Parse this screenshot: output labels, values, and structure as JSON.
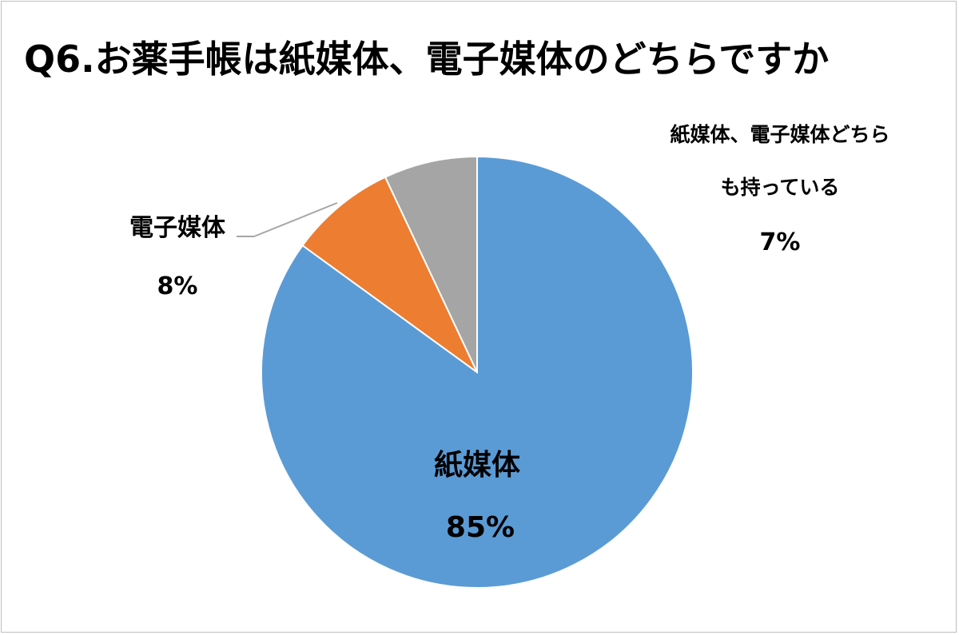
{
  "chart_data": {
    "type": "pie",
    "title": "Q6.お薬手帳は紙媒体、電子媒体のどちらですか",
    "start_angle": "12 o'clock",
    "direction": "clockwise",
    "slices": [
      {
        "name": "紙媒体",
        "value": 85,
        "percent_label": "85%",
        "color": "#5b9bd5"
      },
      {
        "name": "電子媒体",
        "value": 8,
        "percent_label": "8%",
        "color": "#ed7d31"
      },
      {
        "name": "紙媒体、電子媒体どちらも持っている",
        "name_lines": [
          "紙媒体、電子媒体どちら",
          "も持っている"
        ],
        "value": 7,
        "percent_label": "7%",
        "color": "#a5a5a5"
      }
    ]
  }
}
